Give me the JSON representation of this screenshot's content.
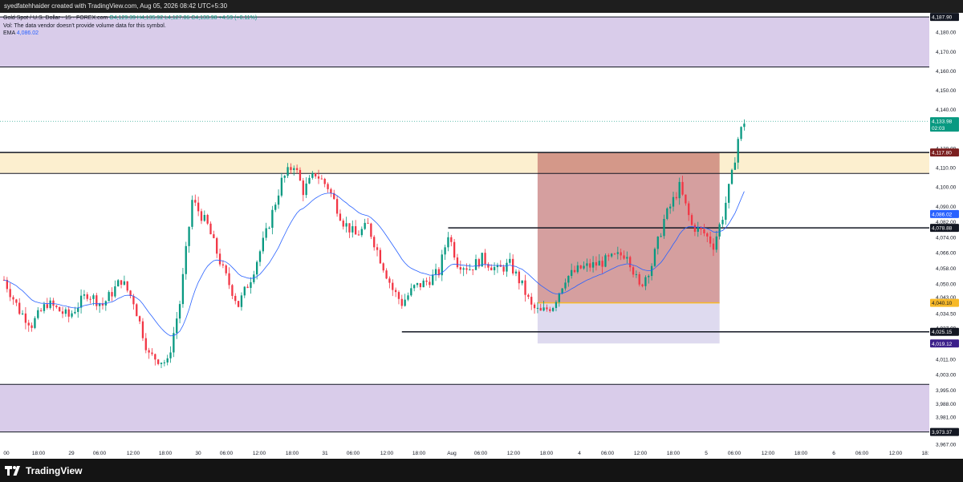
{
  "header": {
    "attribution": "syedfatehhaider created with TradingView.com, Aug 05, 2026 08:42 UTC+5:30"
  },
  "legend": {
    "symbol_line_title": "Gold Spot / U.S. Dollar · 15 · FOREX.com",
    "ohlc": "O4,129.39 H4,135.92 L4,127.06 C4,133.98 +4.59 (+0.11%)",
    "volume_note": "Vol: The data vendor doesn't provide volume data for this symbol.",
    "ema_label": "EMA",
    "ema_value": "4,086.02"
  },
  "price_axis": {
    "ticks": [
      "4,180.00",
      "4,170.00",
      "4,160.00",
      "4,150.00",
      "4,140.00",
      "4,120.00",
      "4,110.00",
      "4,100.00",
      "4,090.00",
      "4,082.00",
      "4,074.00",
      "4,066.00",
      "4,058.00",
      "4,050.00",
      "4,043.00",
      "4,034.50",
      "4,027.00",
      "4,019.00",
      "4,011.00",
      "4,003.00",
      "3,995.00",
      "3,988.00",
      "3,981.00",
      "3,967.00"
    ],
    "badges": [
      {
        "id": "top",
        "text": "4,187.90",
        "bg": "#131722",
        "fg": "#ffffff"
      },
      {
        "id": "last",
        "text": "4,133.98",
        "sub": "02:03",
        "bg": "#089981",
        "fg": "#ffffff"
      },
      {
        "id": "resistance",
        "text": "4,117.80",
        "bg": "#7b1f1f",
        "fg": "#ffffff"
      },
      {
        "id": "ema",
        "text": "4,086.02",
        "bg": "#2962ff",
        "fg": "#ffffff"
      },
      {
        "id": "range-high",
        "text": "4,078.88",
        "bg": "#131722",
        "fg": "#ffffff"
      },
      {
        "id": "entry",
        "text": "4,040.10",
        "bg": "#f7b928",
        "fg": "#131722"
      },
      {
        "id": "range-low",
        "text": "4,025.15",
        "bg": "#131722",
        "fg": "#ffffff"
      },
      {
        "id": "stop",
        "text": "4,019.12",
        "bg": "#3b1f8a",
        "fg": "#ffffff"
      },
      {
        "id": "bottom",
        "text": "3,973.37",
        "bg": "#131722",
        "fg": "#ffffff"
      }
    ]
  },
  "time_axis": {
    "labels": [
      "00",
      "18:00",
      "29",
      "06:00",
      "12:00",
      "18:00",
      "30",
      "06:00",
      "12:00",
      "18:00",
      "31",
      "06:00",
      "12:00",
      "18:00",
      "Aug",
      "06:00",
      "12:00",
      "18:00",
      "4",
      "06:00",
      "12:00",
      "18:00",
      "5",
      "06:00",
      "12:00",
      "18:00",
      "6",
      "06:00",
      "12:00",
      "18:"
    ]
  },
  "footer": {
    "brand": "TradingView"
  },
  "colors": {
    "up": "#089981",
    "down": "#f23645",
    "ema": "#2962ff",
    "zone_purple": "#d9ccea",
    "zone_yellow": "#fcefcf",
    "risk_red": "rgba(178,80,80,0.55)",
    "stop_blue": "rgba(160,150,210,0.35)"
  },
  "chart_data": {
    "type": "candlestick",
    "symbol": "Gold Spot / U.S. Dollar",
    "interval": "15",
    "ylim": [
      3967,
      4190
    ],
    "price_levels": [
      4187.9,
      4162.0,
      4117.8,
      4107.0,
      4078.88,
      4040.1,
      4025.15,
      4019.12,
      3998.0,
      3973.37
    ],
    "last_price": 4133.98,
    "ema": 4086.02,
    "close_path_keypoints": [
      {
        "t": 0,
        "p": 4052
      },
      {
        "t": 5,
        "p": 4036
      },
      {
        "t": 9,
        "p": 4029
      },
      {
        "t": 14,
        "p": 4040
      },
      {
        "t": 21,
        "p": 4033
      },
      {
        "t": 27,
        "p": 4045
      },
      {
        "t": 32,
        "p": 4039
      },
      {
        "t": 38,
        "p": 4052
      },
      {
        "t": 42,
        "p": 4041
      },
      {
        "t": 47,
        "p": 4013
      },
      {
        "t": 53,
        "p": 4009
      },
      {
        "t": 57,
        "p": 4040
      },
      {
        "t": 61,
        "p": 4093
      },
      {
        "t": 66,
        "p": 4080
      },
      {
        "t": 71,
        "p": 4057
      },
      {
        "t": 76,
        "p": 4039
      },
      {
        "t": 80,
        "p": 4053
      },
      {
        "t": 85,
        "p": 4076
      },
      {
        "t": 90,
        "p": 4103
      },
      {
        "t": 94,
        "p": 4112
      },
      {
        "t": 97,
        "p": 4098
      },
      {
        "t": 101,
        "p": 4107
      },
      {
        "t": 105,
        "p": 4100
      },
      {
        "t": 110,
        "p": 4082
      },
      {
        "t": 114,
        "p": 4075
      },
      {
        "t": 118,
        "p": 4080
      },
      {
        "t": 122,
        "p": 4063
      },
      {
        "t": 126,
        "p": 4047
      },
      {
        "t": 129,
        "p": 4040
      },
      {
        "t": 133,
        "p": 4048
      },
      {
        "t": 137,
        "p": 4051
      },
      {
        "t": 141,
        "p": 4056
      },
      {
        "t": 144,
        "p": 4076
      },
      {
        "t": 147,
        "p": 4061
      },
      {
        "t": 151,
        "p": 4058
      },
      {
        "t": 155,
        "p": 4063
      },
      {
        "t": 160,
        "p": 4057
      },
      {
        "t": 164,
        "p": 4060
      },
      {
        "t": 168,
        "p": 4049
      },
      {
        "t": 171,
        "p": 4038
      },
      {
        "t": 174,
        "p": 4035
      },
      {
        "t": 178,
        "p": 4039
      },
      {
        "t": 182,
        "p": 4053
      },
      {
        "t": 187,
        "p": 4058
      },
      {
        "t": 192,
        "p": 4060
      },
      {
        "t": 197,
        "p": 4063
      },
      {
        "t": 202,
        "p": 4066
      },
      {
        "t": 206,
        "p": 4048
      },
      {
        "t": 210,
        "p": 4060
      },
      {
        "t": 214,
        "p": 4083
      },
      {
        "t": 219,
        "p": 4100
      },
      {
        "t": 223,
        "p": 4080
      },
      {
        "t": 227,
        "p": 4076
      },
      {
        "t": 230,
        "p": 4070
      },
      {
        "t": 233,
        "p": 4085
      },
      {
        "t": 236,
        "p": 4106
      },
      {
        "t": 238,
        "p": 4125
      },
      {
        "t": 240,
        "p": 4134
      }
    ]
  }
}
